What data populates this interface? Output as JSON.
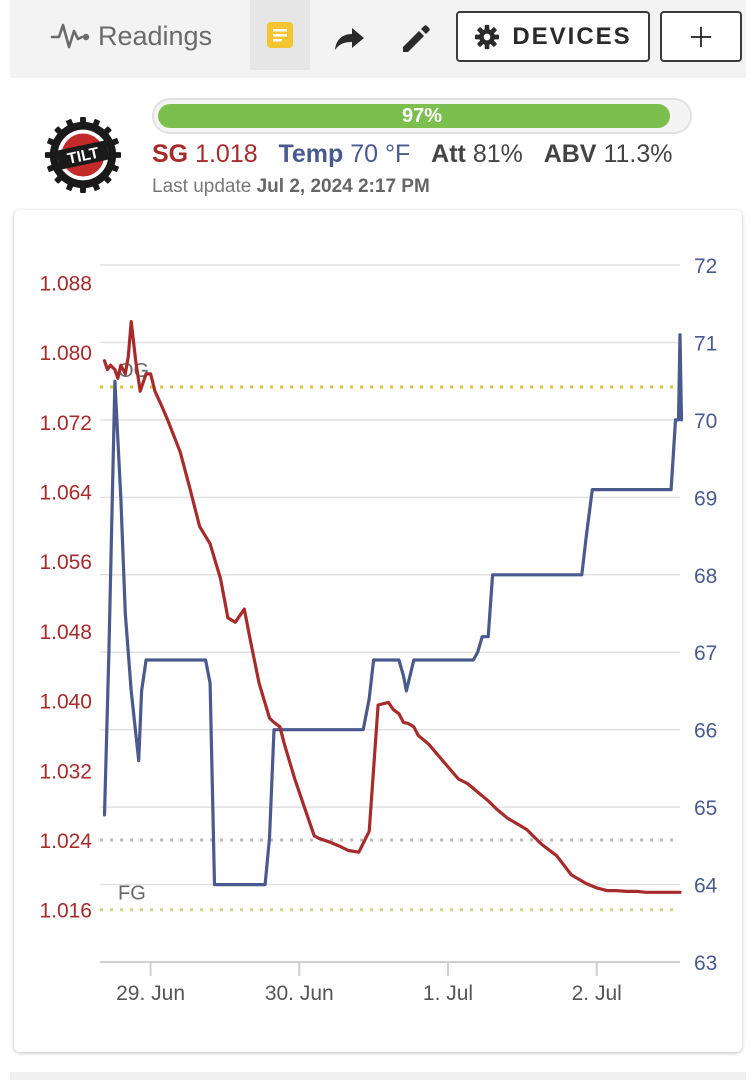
{
  "toolbar": {
    "readings_label": "Readings",
    "readings_icon": "pulse-icon",
    "notes_icon": "notes-icon",
    "share_icon": "share-icon",
    "edit_icon": "pencil-icon",
    "devices_label": "DEVICES",
    "devices_icon": "gear-icon",
    "add_icon": "plus-icon"
  },
  "header": {
    "logo_text": "TILT",
    "battery_percent": 97,
    "battery_label": "97%",
    "sg_label": "SG",
    "sg_value": "1.018",
    "temp_label": "Temp",
    "temp_value": "70 °F",
    "att_label": "Att",
    "att_value": "81%",
    "abv_label": "ABV",
    "abv_value": "11.3%",
    "update_label": "Last update",
    "update_value": "Jul 2, 2024 2:17 PM"
  },
  "colors": {
    "sg": "#a82b2b",
    "temp": "#4a5a8e",
    "battery": "#7cbf4f",
    "og_line": "#e2c23a",
    "fg_line": "#d6d08a",
    "current_line": "#bdbdbd"
  },
  "chart_data": {
    "type": "line",
    "x_ticks": [
      "29. Jun",
      "30. Jun",
      "1. Jul",
      "2. Jul"
    ],
    "x_tick_days": [
      1,
      2,
      3,
      4
    ],
    "xlim": [
      0.66,
      4.56
    ],
    "y_left": {
      "ticks": [
        "1.088",
        "1.080",
        "1.072",
        "1.064",
        "1.056",
        "1.048",
        "1.040",
        "1.032",
        "1.024",
        "1.016"
      ],
      "ylim": [
        1.01,
        1.09
      ]
    },
    "y_right": {
      "ticks": [
        "72",
        "71",
        "70",
        "69",
        "68",
        "67",
        "66",
        "65",
        "64",
        "63"
      ],
      "ylim": [
        63,
        72
      ]
    },
    "plot_lines": [
      {
        "label": "OG",
        "value": 1.076,
        "style": "dotted"
      },
      {
        "label": "",
        "value": 1.024,
        "style": "dotted"
      },
      {
        "label": "FG",
        "value": 1.016,
        "style": "dotted"
      }
    ],
    "series": [
      {
        "axis": "left",
        "x": [
          0.69,
          0.71,
          0.73,
          0.76,
          0.78,
          0.8,
          0.83,
          0.85,
          0.87,
          0.9,
          0.93,
          0.95,
          0.97,
          1.0,
          1.03,
          1.07,
          1.12,
          1.2,
          1.27,
          1.33,
          1.4,
          1.47,
          1.52,
          1.57,
          1.63,
          1.67,
          1.73,
          1.8,
          1.83,
          1.87,
          1.9,
          1.97,
          2.03,
          2.1,
          2.13,
          2.2,
          2.27,
          2.33,
          2.4,
          2.47,
          2.53,
          2.6,
          2.63,
          2.67,
          2.7,
          2.73,
          2.77,
          2.8,
          2.87,
          2.97,
          3.07,
          3.13,
          3.2,
          3.27,
          3.33,
          3.4,
          3.47,
          3.53,
          3.63,
          3.73,
          3.83,
          3.93,
          4.0,
          4.07,
          4.13,
          4.2,
          4.27,
          4.33,
          4.4,
          4.47,
          4.56
        ],
        "values": [
          1.079,
          1.078,
          1.0785,
          1.078,
          1.077,
          1.0785,
          1.0775,
          1.0795,
          1.0835,
          1.079,
          1.0755,
          1.0765,
          1.0775,
          1.0775,
          1.0755,
          1.074,
          1.072,
          1.0685,
          1.064,
          1.06,
          1.058,
          1.054,
          1.0495,
          1.049,
          1.0505,
          1.047,
          1.042,
          1.038,
          1.0375,
          1.037,
          1.035,
          1.031,
          1.028,
          1.0245,
          1.0242,
          1.0238,
          1.0233,
          1.0228,
          1.0226,
          1.025,
          1.0395,
          1.0398,
          1.039,
          1.0385,
          1.0375,
          1.0374,
          1.037,
          1.036,
          1.035,
          1.033,
          1.031,
          1.0305,
          1.0295,
          1.0285,
          1.0275,
          1.0265,
          1.0258,
          1.0252,
          1.0235,
          1.0222,
          1.02,
          1.019,
          1.0185,
          1.0182,
          1.0182,
          1.0181,
          1.0181,
          1.018,
          1.018,
          1.018,
          1.018
        ]
      },
      {
        "axis": "right",
        "x": [
          0.69,
          0.72,
          0.76,
          0.8,
          0.83,
          0.87,
          0.92,
          0.94,
          0.97,
          1.0,
          1.05,
          1.1,
          1.2,
          1.3,
          1.37,
          1.4,
          1.43,
          1.6,
          1.77,
          1.8,
          1.83,
          1.87,
          2.2,
          2.43,
          2.47,
          2.5,
          2.63,
          2.67,
          2.7,
          2.72,
          2.77,
          2.8,
          3.17,
          3.2,
          3.23,
          3.27,
          3.3,
          3.6,
          3.9,
          3.93,
          3.97,
          4.0,
          4.3,
          4.5,
          4.53,
          4.55,
          4.56,
          4.57
        ],
        "values": [
          64.9,
          67.0,
          70.5,
          69.0,
          67.5,
          66.5,
          65.6,
          66.5,
          66.9,
          66.9,
          66.9,
          66.9,
          66.9,
          66.9,
          66.9,
          66.6,
          64.0,
          64.0,
          64.0,
          64.6,
          66.0,
          66.0,
          66.0,
          66.0,
          66.4,
          66.9,
          66.9,
          66.9,
          66.7,
          66.5,
          66.9,
          66.9,
          66.9,
          67.0,
          67.2,
          67.2,
          68.0,
          68.0,
          68.0,
          68.5,
          69.1,
          69.1,
          69.1,
          69.1,
          70.0,
          70.0,
          71.1,
          70.0
        ]
      }
    ]
  }
}
